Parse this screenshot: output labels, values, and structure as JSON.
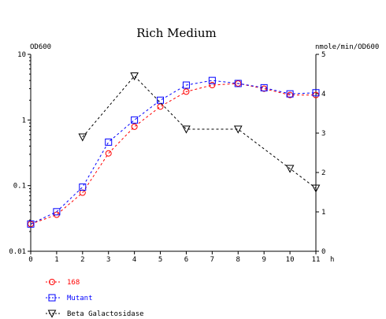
{
  "chart_data": {
    "type": "line",
    "title": "Rich Medium",
    "xlabel": "h",
    "ylabel": "OD600",
    "y2label": "nmole/min/OD600",
    "xlim": [
      0,
      11
    ],
    "ylim": [
      0.01,
      10
    ],
    "y_scale": "log",
    "y2lim": [
      0,
      5
    ],
    "x_ticks": [
      "0",
      "1",
      "2",
      "3",
      "4",
      "5",
      "6",
      "7",
      "8",
      "9",
      "10",
      "11"
    ],
    "y_ticks": [
      {
        "label": "10",
        "value": 10
      },
      {
        "label": "1",
        "value": 1
      },
      {
        "label": "0.1",
        "value": 0.1
      },
      {
        "label": "0.01",
        "value": 0.01
      }
    ],
    "y2_ticks": [
      "0",
      "1",
      "2",
      "3",
      "4",
      "5"
    ],
    "grid": false,
    "legend_position": "bottom-left",
    "series": [
      {
        "name": "168",
        "color": "#ff0000",
        "marker": "circle",
        "axis": "left",
        "x": [
          0,
          1,
          2,
          3,
          4,
          5,
          6,
          7,
          8,
          9,
          10,
          11
        ],
        "values": [
          0.026,
          0.036,
          0.078,
          0.31,
          0.79,
          1.6,
          2.7,
          3.4,
          3.6,
          3.0,
          2.4,
          2.4
        ]
      },
      {
        "name": "Mutant",
        "color": "#0000ff",
        "marker": "square",
        "axis": "left",
        "x": [
          0,
          1,
          2,
          3,
          4,
          5,
          6,
          7,
          8,
          9,
          10,
          11
        ],
        "values": [
          0.026,
          0.04,
          0.095,
          0.46,
          1.0,
          2.0,
          3.4,
          4.0,
          3.6,
          3.1,
          2.5,
          2.6
        ]
      },
      {
        "name": "Beta Galactosidase",
        "color": "#000000",
        "marker": "triangle-down",
        "axis": "right",
        "x": [
          2,
          4,
          6,
          8,
          10,
          11
        ],
        "values": [
          2.9,
          4.45,
          3.1,
          3.1,
          2.1,
          1.6
        ]
      }
    ]
  }
}
